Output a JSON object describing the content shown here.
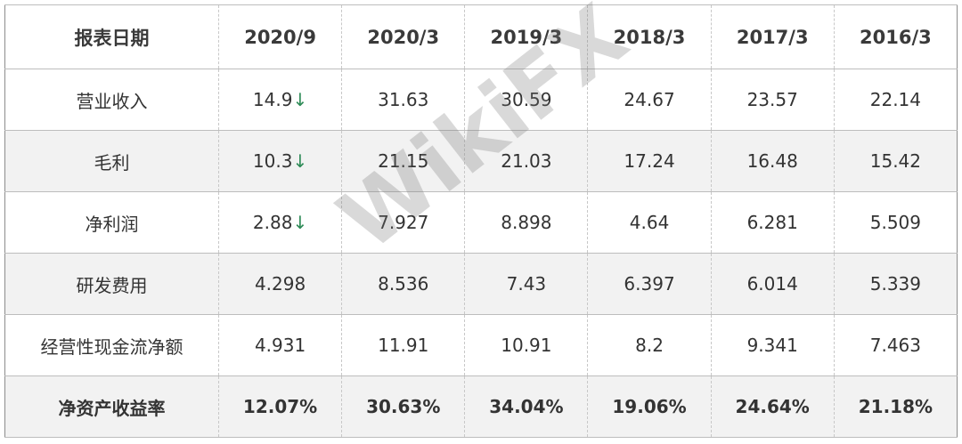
{
  "table": {
    "header": [
      "报表日期",
      "2020/9",
      "2020/3",
      "2019/3",
      "2018/3",
      "2017/3",
      "2016/3"
    ],
    "rows": [
      [
        "营业收入",
        {
          "value": "14.9",
          "mark": "↓"
        },
        "31.63",
        "30.59",
        "24.67",
        "23.57",
        "22.14"
      ],
      [
        "毛利",
        {
          "value": "10.3",
          "mark": "↓"
        },
        "21.15",
        "21.03",
        "17.24",
        "16.48",
        "15.42"
      ],
      [
        "净利润",
        {
          "value": "2.88",
          "mark": "↓"
        },
        "7.927",
        "8.898",
        "4.64",
        "6.281",
        "5.509"
      ],
      [
        "研发费用",
        "4.298",
        "8.536",
        "7.43",
        "6.397",
        "6.014",
        "5.339"
      ],
      [
        "经营性现金流净额",
        "4.931",
        "11.91",
        "10.91",
        "8.2",
        "9.341",
        "7.463"
      ],
      [
        "净资产收益率",
        "12.07%",
        "30.63%",
        "34.04%",
        "19.06%",
        "24.64%",
        "21.18%"
      ]
    ]
  },
  "watermark": "WikiFX"
}
